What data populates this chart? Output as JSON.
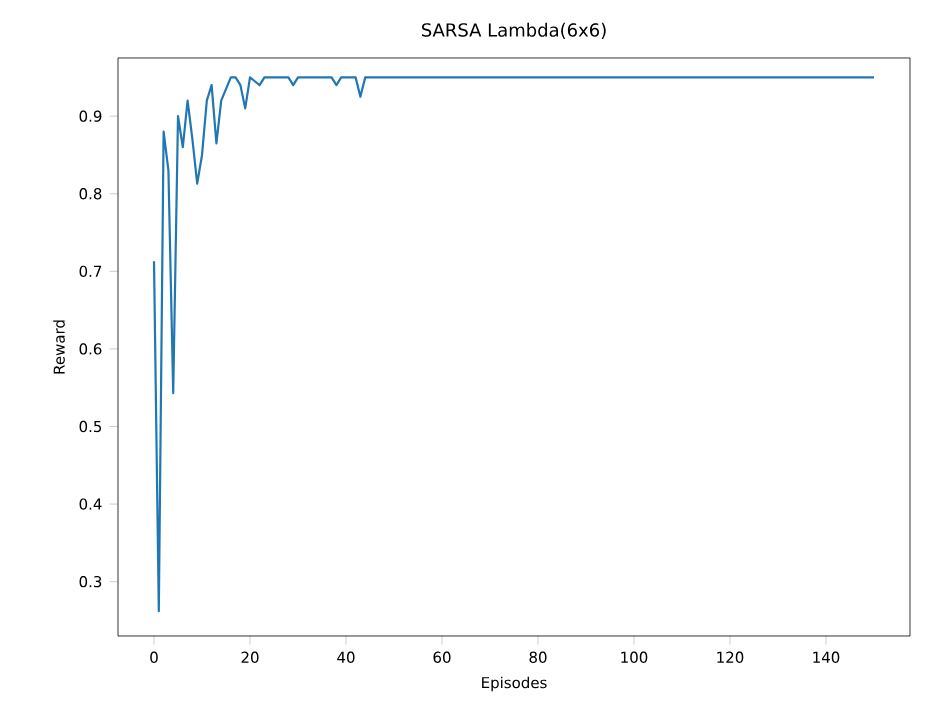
{
  "chart_data": {
    "type": "line",
    "title": "SARSA Lambda(6x6)",
    "xlabel": "Episodes",
    "ylabel": "Reward",
    "x": [
      0,
      1,
      2,
      3,
      4,
      5,
      6,
      7,
      8,
      9,
      10,
      11,
      12,
      13,
      14,
      15,
      16,
      17,
      18,
      19,
      20,
      21,
      22,
      23,
      28,
      29,
      30,
      37,
      38,
      39,
      42,
      43,
      44,
      150
    ],
    "series": [
      {
        "color": "#1f77b4",
        "values": [
          0.713,
          0.262,
          0.88,
          0.83,
          0.543,
          0.9,
          0.86,
          0.92,
          0.87,
          0.813,
          0.85,
          0.92,
          0.94,
          0.865,
          0.92,
          0.935,
          0.95,
          0.95,
          0.94,
          0.91,
          0.95,
          0.945,
          0.94,
          0.95,
          0.95,
          0.94,
          0.95,
          0.95,
          0.94,
          0.95,
          0.95,
          0.925,
          0.95,
          0.95
        ]
      }
    ],
    "xlim": [
      -7.5,
      157.5
    ],
    "ylim": [
      0.23,
      0.975
    ],
    "xticks": [
      0,
      20,
      40,
      60,
      80,
      100,
      120,
      140
    ],
    "yticks": [
      0.3,
      0.4,
      0.5,
      0.6,
      0.7,
      0.8,
      0.9
    ],
    "grid": false,
    "marker": "none",
    "line_style": "solid"
  }
}
